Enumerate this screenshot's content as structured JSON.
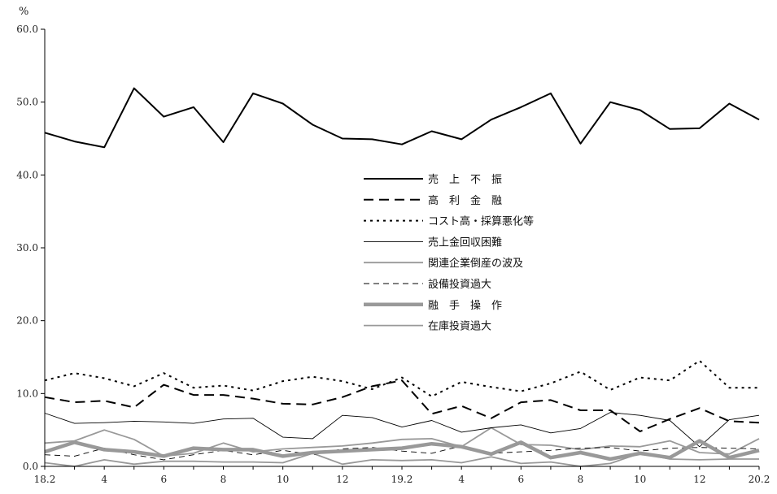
{
  "chart_data": {
    "type": "line",
    "y_unit": "%",
    "ylim": [
      0,
      60
    ],
    "yticks": [
      "0.0",
      "10.0",
      "20.0",
      "30.0",
      "40.0",
      "50.0",
      "60.0"
    ],
    "xtick_labels": [
      "18.2",
      "4",
      "6",
      "8",
      "10",
      "12",
      "19.2",
      "4",
      "6",
      "8",
      "10",
      "12",
      "20.2"
    ],
    "x": [
      "18.2",
      "18.3",
      "18.4",
      "18.5",
      "18.6",
      "18.7",
      "18.8",
      "18.9",
      "18.10",
      "18.11",
      "18.12",
      "19.1",
      "19.2",
      "19.3",
      "19.4",
      "19.5",
      "19.6",
      "19.7",
      "19.8",
      "19.9",
      "19.10",
      "19.11",
      "19.12",
      "20.1",
      "20.2"
    ],
    "grid": false,
    "legend_position": "center",
    "series": [
      {
        "name": "売　上　不　振",
        "color": "#000000",
        "width": 2,
        "dash": "",
        "values": [
          45.8,
          44.6,
          43.8,
          51.9,
          48.0,
          49.3,
          44.5,
          51.2,
          49.8,
          46.9,
          45.0,
          44.9,
          44.2,
          46.0,
          44.9,
          47.6,
          49.3,
          51.2,
          44.3,
          50.0,
          48.9,
          46.3,
          46.4,
          49.8,
          47.6
        ]
      },
      {
        "name": "高　利　金　融",
        "color": "#000000",
        "width": 2,
        "dash": "12,7",
        "values": [
          9.5,
          8.8,
          9.0,
          8.1,
          11.2,
          9.8,
          9.8,
          9.3,
          8.6,
          8.5,
          9.5,
          11.0,
          11.8,
          7.2,
          8.3,
          6.6,
          8.8,
          9.1,
          7.7,
          7.7,
          4.8,
          6.5,
          8.0,
          6.2,
          6.0
        ]
      },
      {
        "name": "コスト高・採算悪化等",
        "color": "#000000",
        "width": 2,
        "dash": "3,5",
        "values": [
          11.8,
          12.8,
          12.1,
          11.0,
          12.8,
          10.8,
          11.1,
          10.4,
          11.7,
          12.3,
          11.7,
          10.6,
          12.2,
          9.6,
          11.6,
          10.9,
          10.3,
          11.4,
          13.0,
          10.5,
          12.2,
          11.8,
          14.5,
          10.8,
          10.8
        ]
      },
      {
        "name": "売上金回収困難",
        "color": "#000000",
        "width": 0.9,
        "dash": "",
        "values": [
          7.3,
          5.9,
          6.0,
          6.2,
          6.1,
          5.9,
          6.5,
          6.6,
          4.0,
          3.8,
          7.0,
          6.7,
          5.4,
          6.3,
          4.7,
          5.3,
          5.7,
          4.6,
          5.2,
          7.4,
          7.0,
          6.3,
          2.7,
          6.4,
          7.0
        ]
      },
      {
        "name": "関連企業倒産の波及",
        "color": "#999999",
        "width": 1.8,
        "dash": "",
        "values": [
          3.2,
          3.5,
          5.0,
          3.7,
          1.4,
          1.8,
          3.2,
          2.0,
          2.4,
          2.6,
          2.8,
          3.2,
          3.7,
          3.8,
          2.7,
          5.3,
          3.0,
          2.9,
          2.3,
          2.8,
          2.7,
          3.5,
          1.9,
          1.7,
          3.8
        ]
      },
      {
        "name": "設備投資過大",
        "color": "#000000",
        "width": 0.9,
        "dash": "7,5",
        "values": [
          1.6,
          1.4,
          2.5,
          1.6,
          0.9,
          1.6,
          2.2,
          1.6,
          2.2,
          1.6,
          2.4,
          2.6,
          2.1,
          1.8,
          2.8,
          1.8,
          2.0,
          2.2,
          2.5,
          2.6,
          2.1,
          2.5,
          2.6,
          2.5,
          2.4
        ]
      },
      {
        "name": "融　手　操　作",
        "color": "#999999",
        "width": 4.5,
        "dash": "",
        "values": [
          2.0,
          3.3,
          2.3,
          2.0,
          1.4,
          2.5,
          2.3,
          2.3,
          1.4,
          1.9,
          2.1,
          2.3,
          2.5,
          3.1,
          2.7,
          1.7,
          3.3,
          1.2,
          1.9,
          1.0,
          1.8,
          1.2,
          3.5,
          1.2,
          2.2
        ]
      },
      {
        "name": "在庫投資過大",
        "color": "#999999",
        "width": 1.8,
        "dash": "",
        "values": [
          0.5,
          0.0,
          0.9,
          0.3,
          0.7,
          0.7,
          0.6,
          0.6,
          0.5,
          1.8,
          0.3,
          0.9,
          0.8,
          0.9,
          0.5,
          1.3,
          0.4,
          0.6,
          0.0,
          0.4,
          1.8,
          1.0,
          0.9,
          1.0,
          1.0
        ]
      }
    ]
  }
}
